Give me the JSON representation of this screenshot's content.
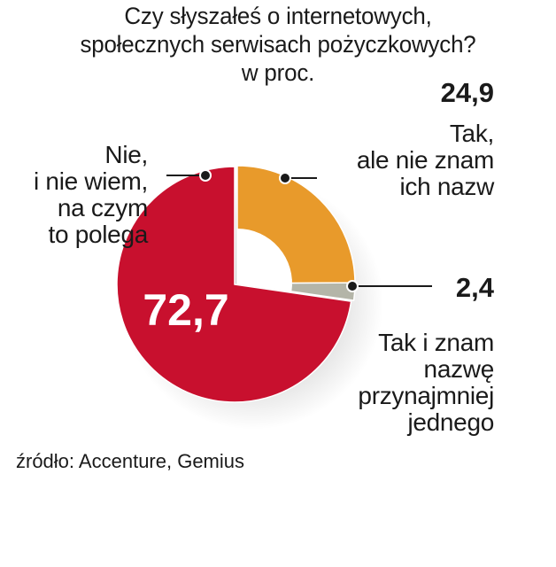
{
  "chart_data": {
    "type": "pie",
    "title_lines": [
      "Czy słyszałeś o internetowych,",
      "społecznych serwisach pożyczkowych?"
    ],
    "unit": "w proc.",
    "slices": [
      {
        "value": 24.9,
        "value_label": "24,9",
        "label_lines": [
          "Tak,",
          "ale nie znam",
          "ich nazw"
        ],
        "color": "#E89A2B"
      },
      {
        "value": 2.4,
        "value_label": "2,4",
        "label_lines": [
          "Tak i znam",
          "nazwę",
          "przynajmniej",
          "jednego"
        ],
        "color": "#B4B5A8"
      },
      {
        "value": 72.7,
        "value_label": "72,7",
        "label_lines": [
          "Nie,",
          "i nie wiem,",
          "na czym",
          "to polega"
        ],
        "color": "#C8102E"
      }
    ],
    "source": "źródło: Accenture, Gemius"
  }
}
